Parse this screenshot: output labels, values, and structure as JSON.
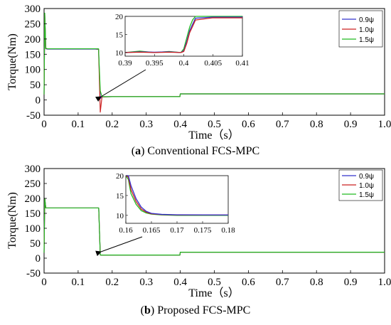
{
  "chart_data": [
    {
      "type": "line",
      "caption_letter": "a",
      "caption_text": "Conventional FCS-MPC",
      "xlabel": "Time（s）",
      "ylabel": "Torque(Nm)",
      "xlim": [
        0,
        1.0
      ],
      "ylim": [
        -50,
        300
      ],
      "x_ticks": [
        "0",
        "0.1",
        "0.2",
        "0.3",
        "0.4",
        "0.5",
        "0.6",
        "0.7",
        "0.8",
        "0.9",
        "1.0"
      ],
      "y_ticks": [
        "-50",
        "0",
        "50",
        "100",
        "150",
        "200",
        "250",
        "300"
      ],
      "grid": false,
      "legend_position": "top-right",
      "series": [
        {
          "name": "0.9ψ",
          "color": "#3333cc",
          "x": [
            0,
            0.002,
            0.005,
            0.01,
            0.05,
            0.1,
            0.15,
            0.16,
            0.165,
            0.17,
            0.2,
            0.3,
            0.399,
            0.4,
            0.5,
            0.6,
            0.7,
            0.8,
            0.9,
            1.0
          ],
          "y": [
            18,
            275,
            168,
            167,
            167,
            167,
            167,
            166,
            5,
            10,
            11,
            11,
            11,
            20,
            20,
            20,
            20,
            20,
            20,
            20
          ]
        },
        {
          "name": "1.0ψ",
          "color": "#cc2222",
          "x": [
            0,
            0.002,
            0.005,
            0.01,
            0.05,
            0.1,
            0.15,
            0.16,
            0.165,
            0.17,
            0.2,
            0.3,
            0.399,
            0.4,
            0.5,
            0.6,
            0.7,
            0.8,
            0.9,
            1.0
          ],
          "y": [
            18,
            280,
            169,
            168,
            168,
            168,
            168,
            167,
            -40,
            10,
            11,
            11,
            11,
            20,
            20,
            20,
            20,
            20,
            20,
            20
          ]
        },
        {
          "name": "1.5ψ",
          "color": "#22bb22",
          "x": [
            0,
            0.002,
            0.005,
            0.01,
            0.05,
            0.1,
            0.15,
            0.16,
            0.165,
            0.17,
            0.2,
            0.3,
            0.399,
            0.4,
            0.5,
            0.6,
            0.7,
            0.8,
            0.9,
            1.0
          ],
          "y": [
            18,
            285,
            170,
            168,
            168,
            168,
            168,
            168,
            30,
            11,
            11,
            11,
            11,
            20,
            20,
            20,
            20,
            20,
            20,
            20
          ]
        }
      ],
      "inset": {
        "xlim": [
          0.39,
          0.41
        ],
        "ylim": [
          9,
          20
        ],
        "x_ticks": [
          "0.39",
          "0.395",
          "0.4",
          "0.405",
          "0.41"
        ],
        "y_ticks": [
          "10",
          "15",
          "20"
        ],
        "series": [
          {
            "color": "#22bb22",
            "x": [
              0.39,
              0.3925,
              0.395,
              0.3975,
              0.3995,
              0.4,
              0.4005,
              0.401,
              0.4015,
              0.402,
              0.405,
              0.41
            ],
            "y": [
              10,
              10.4,
              10,
              10.3,
              10,
              11,
              14,
              17,
              19,
              20,
              20,
              20
            ]
          },
          {
            "color": "#3333cc",
            "x": [
              0.39,
              0.3925,
              0.395,
              0.3975,
              0.3995,
              0.4,
              0.4005,
              0.401,
              0.4015,
              0.402,
              0.405,
              0.41
            ],
            "y": [
              10,
              10.2,
              10.1,
              10.2,
              10,
              10.5,
              13,
              16,
              17.8,
              19.5,
              19.8,
              19.8
            ]
          },
          {
            "color": "#cc2222",
            "x": [
              0.39,
              0.3925,
              0.395,
              0.3975,
              0.3995,
              0.4,
              0.4005,
              0.401,
              0.4015,
              0.402,
              0.405,
              0.41
            ],
            "y": [
              10,
              10.1,
              10,
              10.1,
              10,
              10.3,
              12.5,
              15.5,
              17.2,
              19,
              19.6,
              19.6
            ]
          }
        ]
      }
    },
    {
      "type": "line",
      "caption_letter": "b",
      "caption_text": "Proposed FCS-MPC",
      "xlabel": "Time（s）",
      "ylabel": "Torque(Nm)",
      "xlim": [
        0,
        1.0
      ],
      "ylim": [
        -50,
        300
      ],
      "x_ticks": [
        "0",
        "0.1",
        "0.2",
        "0.3",
        "0.4",
        "0.5",
        "0.6",
        "0.7",
        "0.8",
        "0.9",
        "1.0"
      ],
      "y_ticks": [
        "-50",
        "0",
        "50",
        "100",
        "150",
        "200",
        "250",
        "300"
      ],
      "grid": false,
      "legend_position": "top-right",
      "series": [
        {
          "name": "0.9ψ",
          "color": "#3333cc",
          "x": [
            0,
            0.002,
            0.005,
            0.16,
            0.1605,
            0.165,
            0.3,
            0.399,
            0.4,
            0.5,
            1.0
          ],
          "y": [
            18,
            200,
            168,
            168,
            168,
            10.5,
            10.5,
            10.5,
            20,
            20,
            20
          ]
        },
        {
          "name": "1.0ψ",
          "color": "#cc2222",
          "x": [
            0,
            0.002,
            0.005,
            0.16,
            0.1605,
            0.165,
            0.3,
            0.399,
            0.4,
            0.5,
            1.0
          ],
          "y": [
            18,
            200,
            168,
            168,
            168,
            10.5,
            10.5,
            10.5,
            20,
            20,
            20
          ]
        },
        {
          "name": "1.5ψ",
          "color": "#22bb22",
          "x": [
            0,
            0.002,
            0.005,
            0.16,
            0.1605,
            0.165,
            0.3,
            0.399,
            0.4,
            0.5,
            1.0
          ],
          "y": [
            18,
            200,
            168,
            168,
            168,
            10.5,
            10.5,
            10.5,
            20,
            20,
            20
          ]
        }
      ],
      "inset": {
        "xlim": [
          0.16,
          0.18
        ],
        "ylim": [
          8,
          20
        ],
        "x_ticks": [
          "0.16",
          "0.165",
          "0.17",
          "0.175",
          "0.18"
        ],
        "y_ticks": [
          "10",
          "15",
          "20"
        ],
        "series": [
          {
            "color": "#22bb22",
            "x": [
              0.16,
              0.1605,
              0.161,
              0.162,
              0.163,
              0.164,
              0.165,
              0.167,
              0.17,
              0.18
            ],
            "y": [
              20,
              19,
              15.5,
              12.8,
              11.2,
              10.6,
              10.3,
              10.1,
              10,
              10
            ]
          },
          {
            "color": "#cc2222",
            "x": [
              0.16,
              0.1605,
              0.161,
              0.162,
              0.163,
              0.164,
              0.165,
              0.167,
              0.17,
              0.18
            ],
            "y": [
              20,
              19.6,
              16.5,
              13.5,
              11.6,
              10.8,
              10.4,
              10.2,
              10.1,
              10.1
            ]
          },
          {
            "color": "#3333cc",
            "x": [
              0.16,
              0.1605,
              0.161,
              0.162,
              0.163,
              0.164,
              0.165,
              0.167,
              0.17,
              0.18
            ],
            "y": [
              20,
              20,
              17.5,
              14.2,
              12.1,
              11,
              10.5,
              10.25,
              10.15,
              10.1
            ]
          }
        ]
      }
    }
  ]
}
